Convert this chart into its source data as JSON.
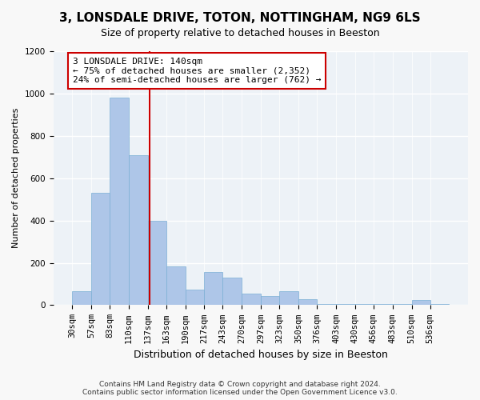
{
  "title": "3, LONSDALE DRIVE, TOTON, NOTTINGHAM, NG9 6LS",
  "subtitle": "Size of property relative to detached houses in Beeston",
  "xlabel": "Distribution of detached houses by size in Beeston",
  "ylabel": "Number of detached properties",
  "footer_line1": "Contains HM Land Registry data © Crown copyright and database right 2024.",
  "footer_line2": "Contains public sector information licensed under the Open Government Licence v3.0.",
  "annotation_line1": "3 LONSDALE DRIVE: 140sqm",
  "annotation_line2": "← 75% of detached houses are smaller (2,352)",
  "annotation_line3": "24% of semi-detached houses are larger (762) →",
  "property_size": 140,
  "bar_edges": [
    30,
    57,
    83,
    110,
    137,
    163,
    190,
    217,
    243,
    270,
    297,
    323,
    350,
    376,
    403,
    430,
    456,
    483,
    510,
    536,
    563
  ],
  "bar_heights": [
    65,
    530,
    980,
    710,
    400,
    185,
    75,
    155,
    130,
    55,
    45,
    65,
    30,
    5,
    5,
    5,
    5,
    5,
    25,
    5
  ],
  "bar_color": "#aec6e8",
  "bar_edge_color": "#7bafd4",
  "vline_color": "#cc0000",
  "vline_x": 140,
  "annotation_box_color": "#cc0000",
  "bg_color": "#edf2f7",
  "grid_color": "#ffffff",
  "ylim": [
    0,
    1200
  ],
  "yticks": [
    0,
    200,
    400,
    600,
    800,
    1000,
    1200
  ],
  "title_fontsize": 11,
  "subtitle_fontsize": 9,
  "xlabel_fontsize": 9,
  "ylabel_fontsize": 8,
  "tick_fontsize": 7.5,
  "annotation_fontsize": 8
}
